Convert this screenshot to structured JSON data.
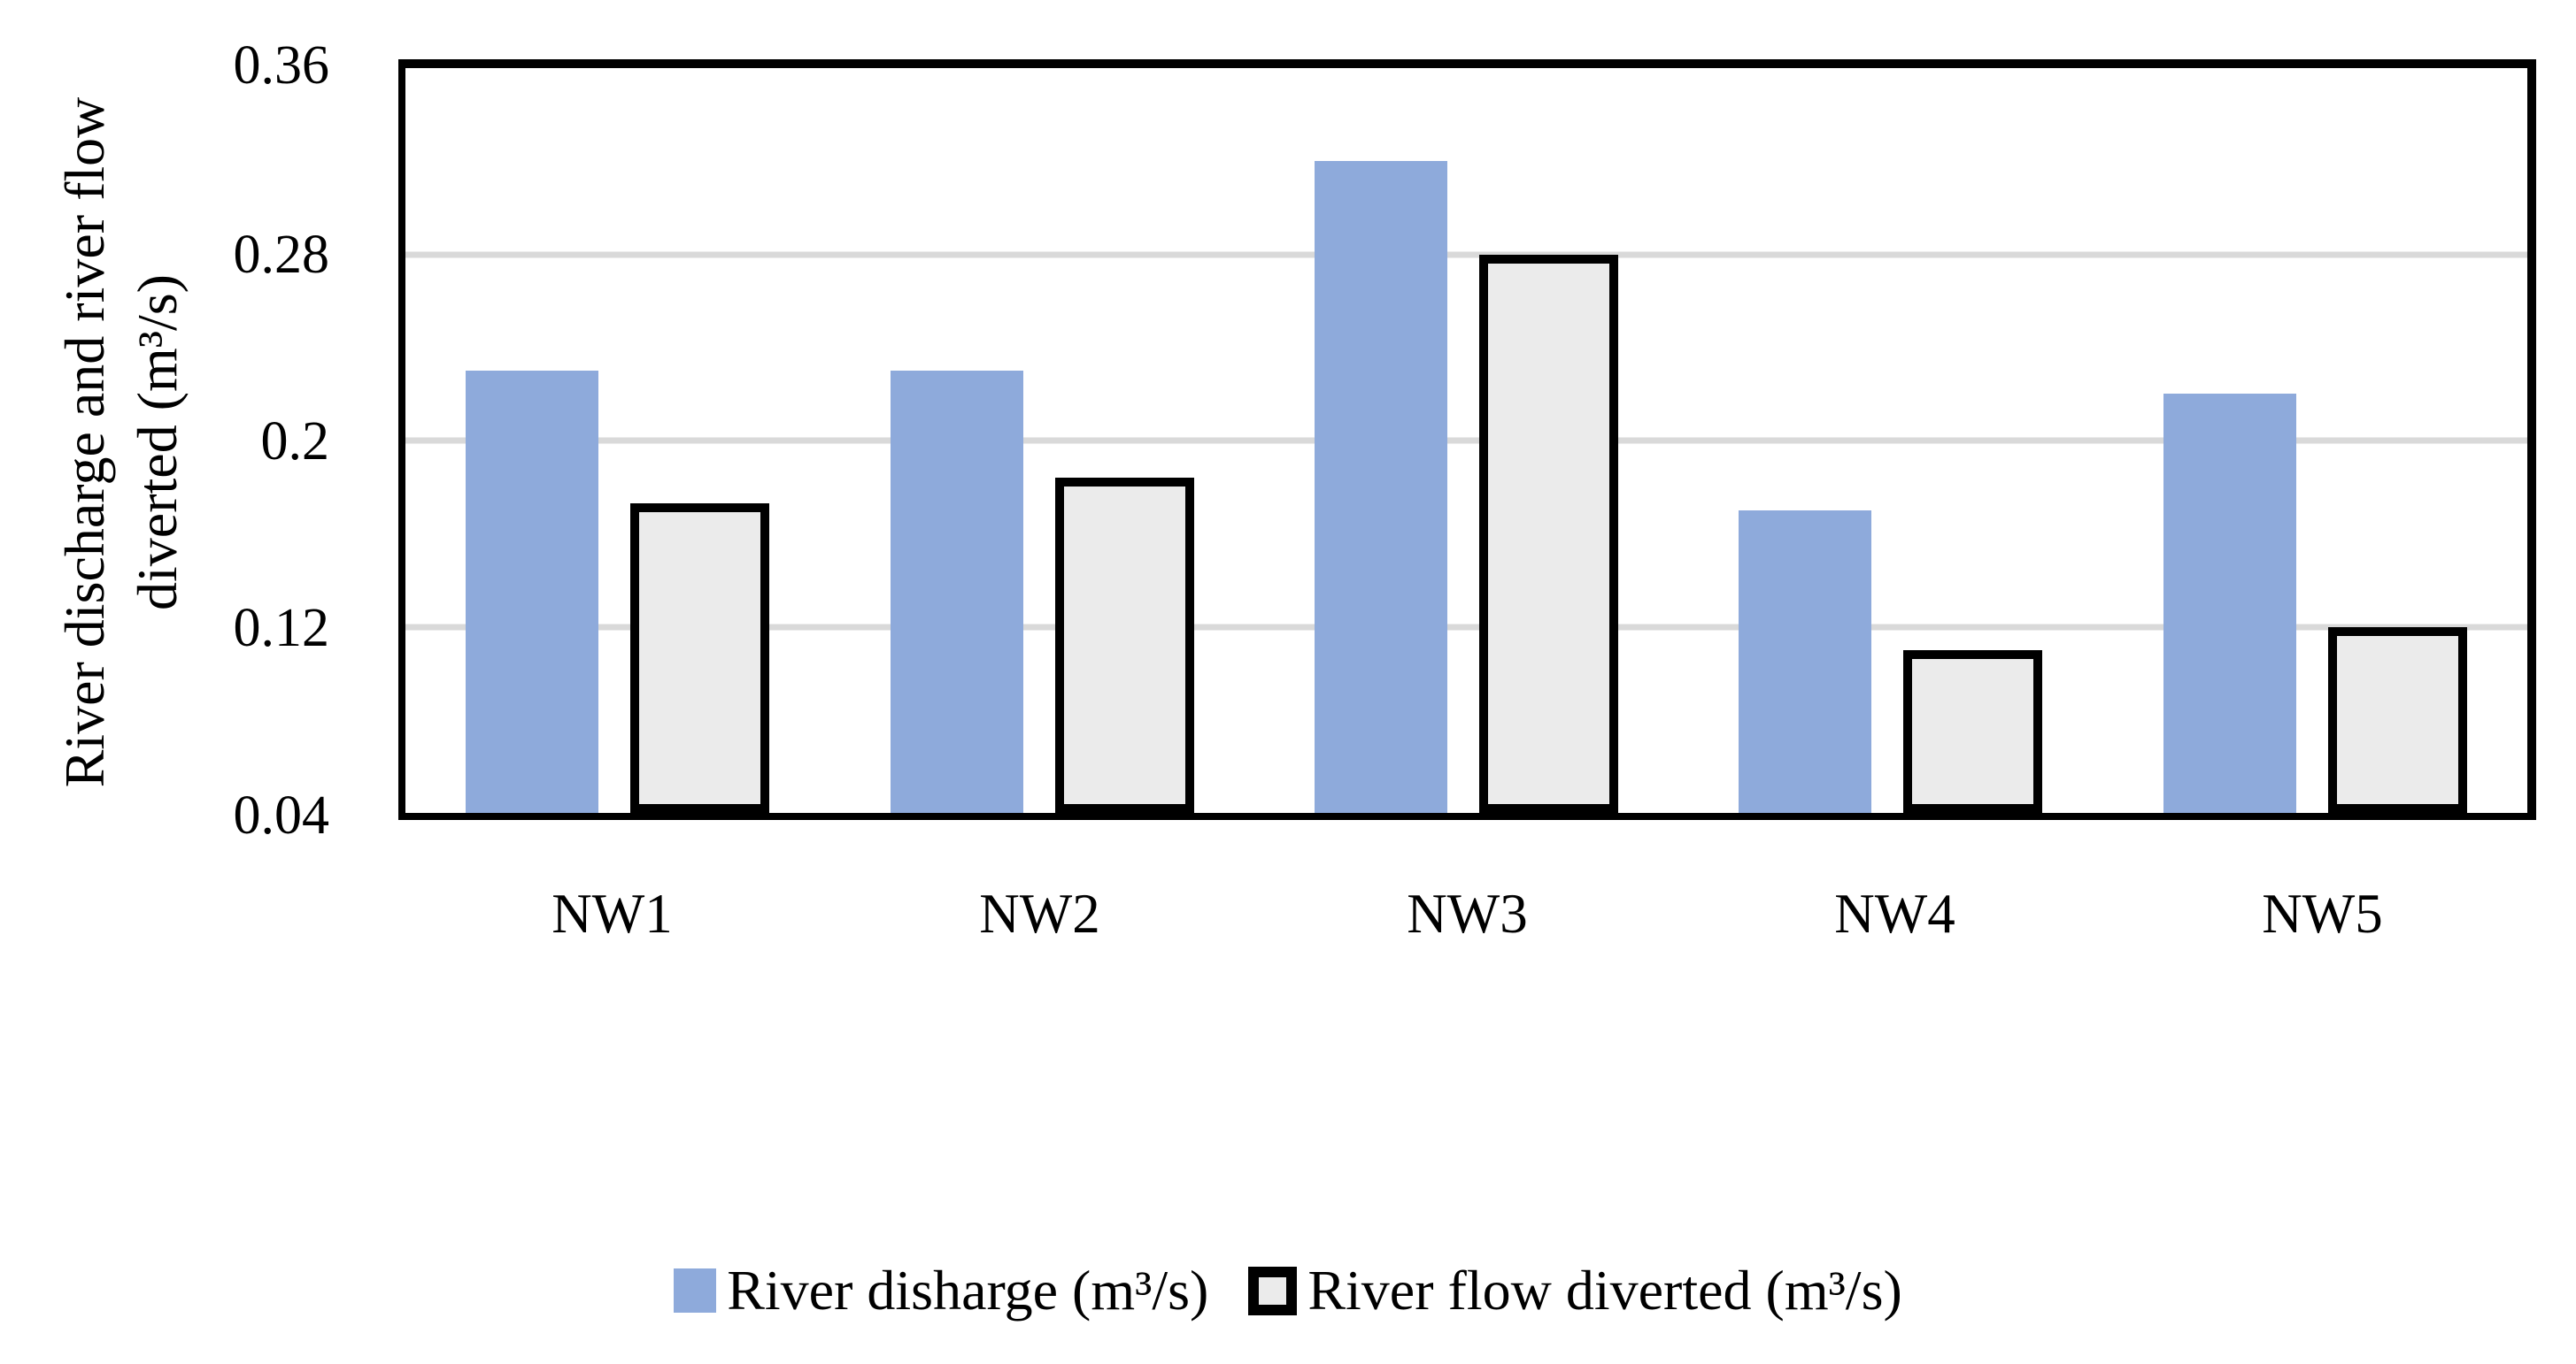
{
  "figure": {
    "y_axis_title_line1": "River discharge and river flow",
    "y_axis_title_line2": "diverted (m³/s)"
  },
  "chart_data": {
    "type": "bar",
    "categories": [
      "NW1",
      "NW2",
      "NW3",
      "NW4",
      "NW5"
    ],
    "series": [
      {
        "name": "River disharge (m³/s)",
        "color": "#8EAADB",
        "values": [
          0.23,
          0.23,
          0.32,
          0.17,
          0.22
        ]
      },
      {
        "name": "River flow diverted (m³/s)",
        "color": "#EBEBEB",
        "border_color": "#000000",
        "values": [
          0.173,
          0.184,
          0.28,
          0.11,
          0.12
        ]
      }
    ],
    "title": "",
    "xlabel": "",
    "ylabel": "River discharge and river flow diverted (m³/s)",
    "ylim": [
      0.04,
      0.36
    ],
    "y_ticks": [
      "0.36",
      "0.28",
      "0.2",
      "0.12",
      "0.04"
    ],
    "grid": "horizontal",
    "gridline_color": "#D9D9D9",
    "axis_color": "#000000",
    "legend_position": "bottom"
  }
}
